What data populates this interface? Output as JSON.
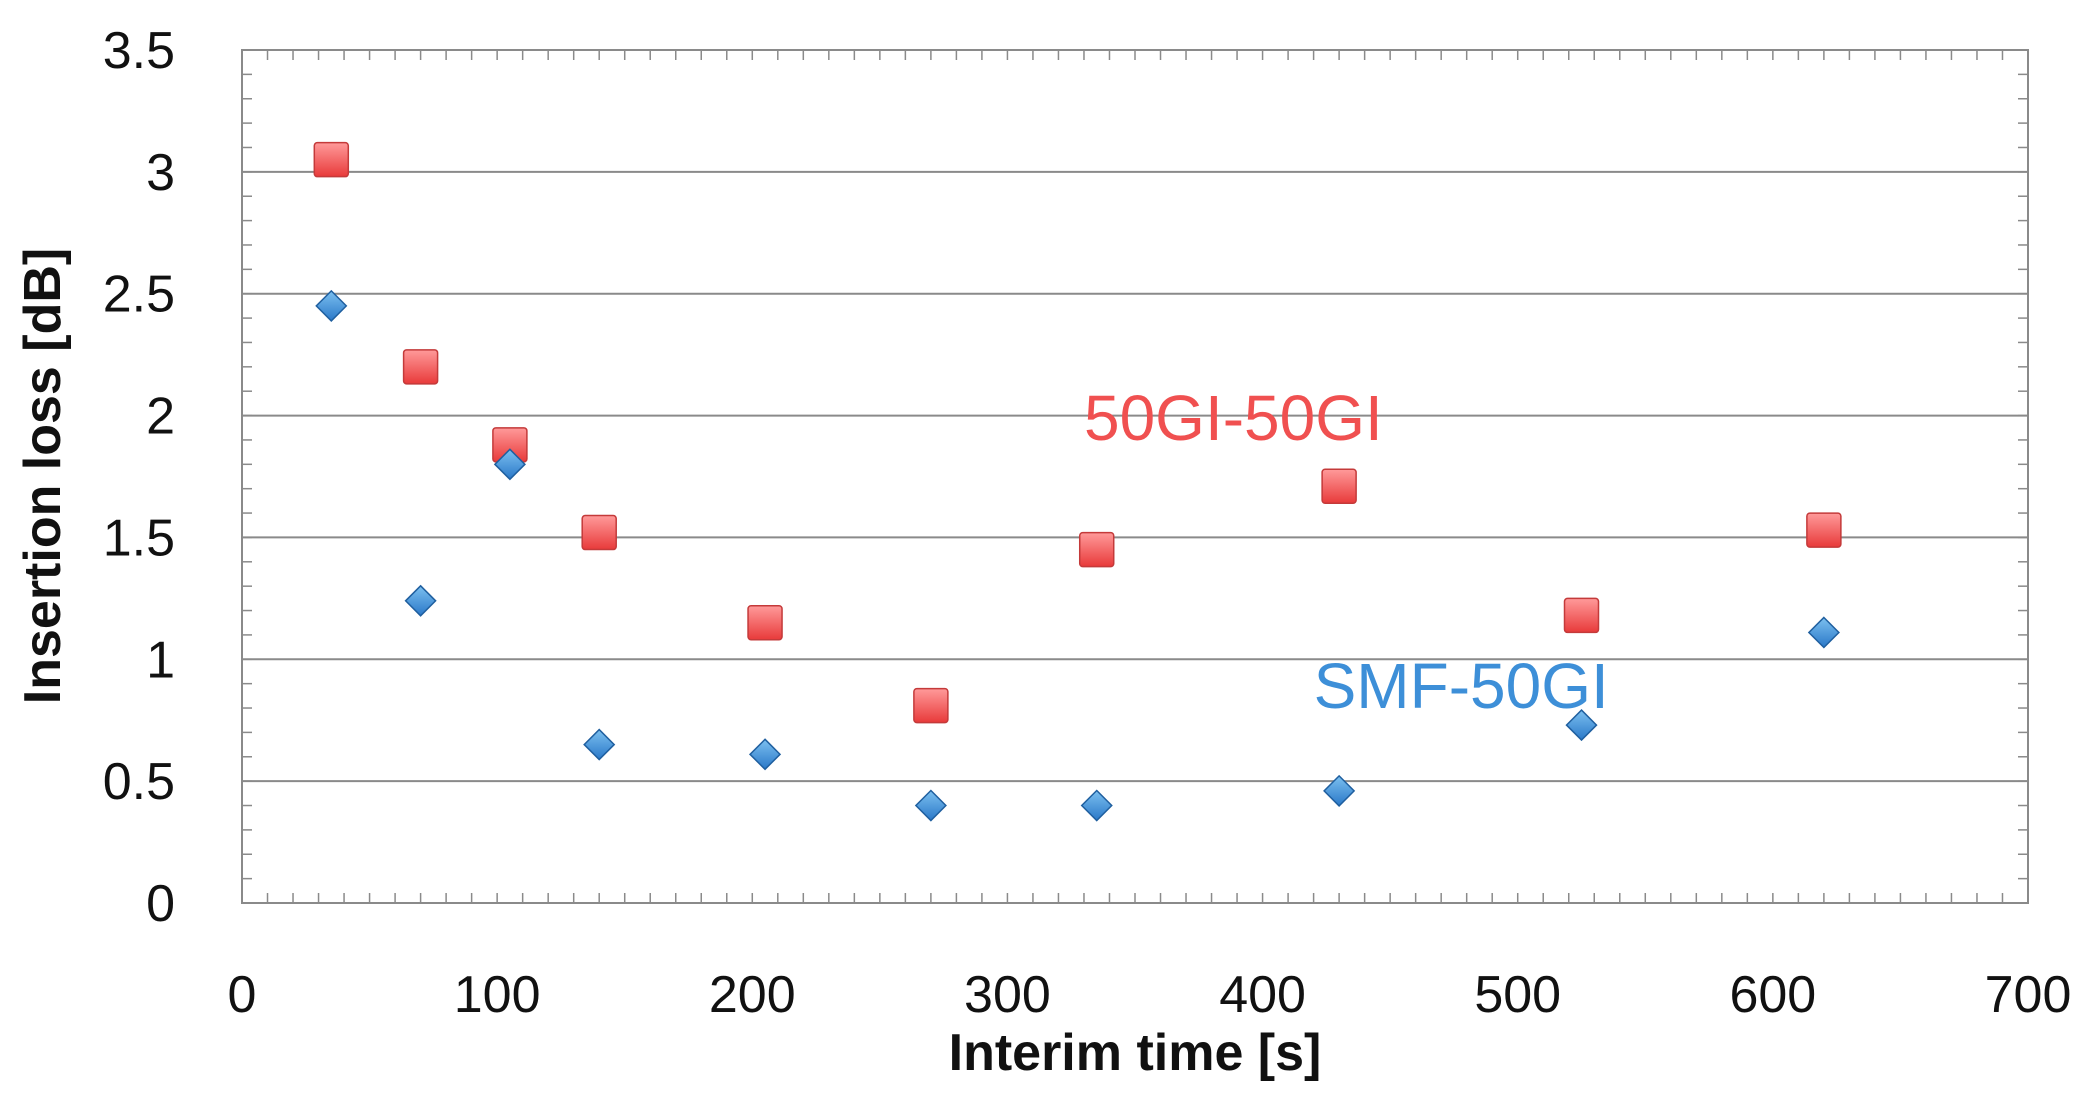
{
  "chart_data": {
    "type": "scatter",
    "title": "",
    "xlabel": "Interim time [s]",
    "ylabel": "Insertion loss [dB]",
    "xlim": [
      0,
      700
    ],
    "ylim": [
      0,
      3.5
    ],
    "x_ticks": [
      "0",
      "100",
      "200",
      "300",
      "400",
      "500",
      "600",
      "700"
    ],
    "y_ticks": [
      "0",
      "0.5",
      "1",
      "1.5",
      "2",
      "2.5",
      "3",
      "3.5"
    ],
    "grid": "horizontal",
    "series": [
      {
        "name": "50GI-50GI",
        "marker": "square",
        "color": "#f05050",
        "points": [
          {
            "x": 35,
            "y": 3.05
          },
          {
            "x": 70,
            "y": 2.2
          },
          {
            "x": 105,
            "y": 1.88
          },
          {
            "x": 140,
            "y": 1.52
          },
          {
            "x": 205,
            "y": 1.15
          },
          {
            "x": 270,
            "y": 0.81
          },
          {
            "x": 335,
            "y": 1.45
          },
          {
            "x": 430,
            "y": 1.71
          },
          {
            "x": 525,
            "y": 1.18
          },
          {
            "x": 620,
            "y": 1.53
          }
        ]
      },
      {
        "name": "SMF-50GI",
        "marker": "diamond",
        "color": "#3d8fd8",
        "points": [
          {
            "x": 35,
            "y": 2.45
          },
          {
            "x": 70,
            "y": 1.24
          },
          {
            "x": 105,
            "y": 1.8
          },
          {
            "x": 140,
            "y": 0.65
          },
          {
            "x": 205,
            "y": 0.61
          },
          {
            "x": 270,
            "y": 0.4
          },
          {
            "x": 335,
            "y": 0.4
          },
          {
            "x": 430,
            "y": 0.46
          },
          {
            "x": 525,
            "y": 0.73
          },
          {
            "x": 620,
            "y": 1.11
          }
        ]
      }
    ],
    "annotations": [
      {
        "text": "50GI-50GI",
        "series": "50GI-50GI",
        "x": 330,
        "y": 1.9
      },
      {
        "text": "SMF-50GI",
        "series": "SMF-50GI",
        "x": 420,
        "y": 0.8
      }
    ]
  }
}
